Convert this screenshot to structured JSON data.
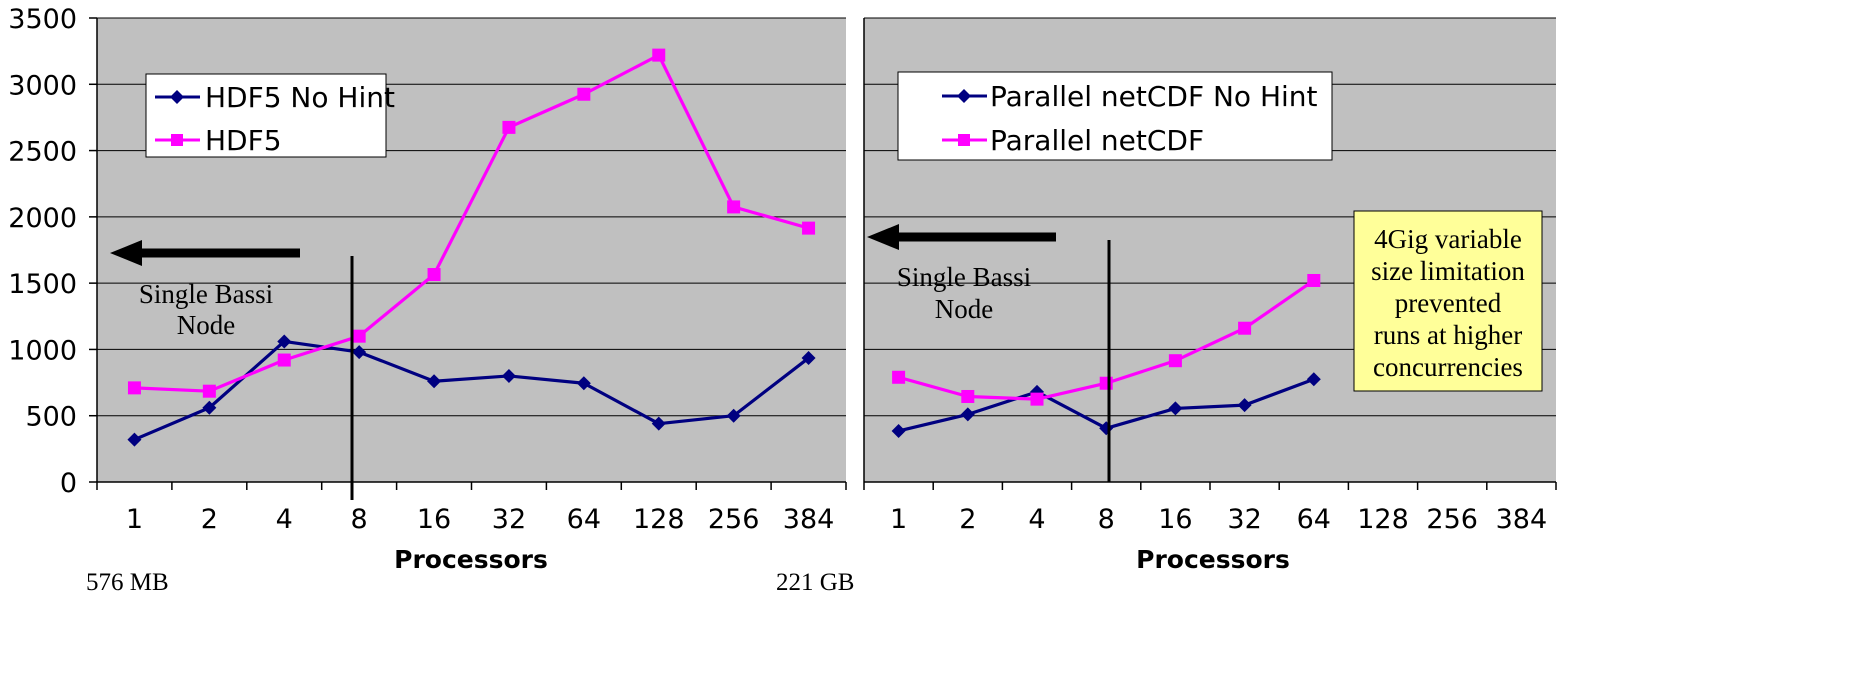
{
  "chart_data": [
    {
      "type": "line",
      "categories": [
        "1",
        "2",
        "4",
        "8",
        "16",
        "32",
        "64",
        "128",
        "256",
        "384"
      ],
      "xlabel": "Processors",
      "ylabel": "",
      "ylim": [
        0,
        3500
      ],
      "yticks": [
        "0",
        "500",
        "1000",
        "1500",
        "2000",
        "2500",
        "3000",
        "3500"
      ],
      "grid": true,
      "legend_position": "top-left",
      "plot_background": "#c0c0c0",
      "series": [
        {
          "name": "HDF5 No Hint",
          "color": "#000080",
          "marker": "diamond",
          "values": [
            320,
            560,
            1060,
            980,
            760,
            800,
            745,
            440,
            500,
            935
          ]
        },
        {
          "name": "HDF5",
          "color": "#ff00ff",
          "marker": "square",
          "values": [
            710,
            685,
            920,
            1100,
            1565,
            2675,
            2925,
            3220,
            2075,
            1915
          ]
        }
      ],
      "annotations": {
        "divider_category": "8",
        "arrow_direction": "left",
        "label_line1": "Single Bassi",
        "label_line2": "Node"
      },
      "footnote": "576 MB"
    },
    {
      "type": "line",
      "categories": [
        "1",
        "2",
        "4",
        "8",
        "16",
        "32",
        "64",
        "128",
        "256",
        "384"
      ],
      "xlabel": "Processors",
      "ylabel": "",
      "ylim": [
        0,
        3500
      ],
      "grid": true,
      "legend_position": "top-left",
      "plot_background": "#c0c0c0",
      "series": [
        {
          "name": "Parallel netCDF No Hint",
          "color": "#000080",
          "marker": "diamond",
          "values": [
            385,
            510,
            680,
            405,
            555,
            580,
            775,
            null,
            null,
            null
          ]
        },
        {
          "name": "Parallel netCDF",
          "color": "#ff00ff",
          "marker": "square",
          "values": [
            790,
            645,
            625,
            745,
            915,
            1160,
            1520,
            null,
            null,
            null
          ]
        }
      ],
      "annotations": {
        "divider_category": "8",
        "arrow_direction": "left",
        "label_line1": "Single Bassi",
        "label_line2": "Node",
        "note_lines": [
          "4Gig variable",
          "size limitation",
          "prevented",
          "runs at higher",
          "concurrencies"
        ],
        "note_background": "#ffff99"
      },
      "footnote": "221 GB"
    }
  ]
}
